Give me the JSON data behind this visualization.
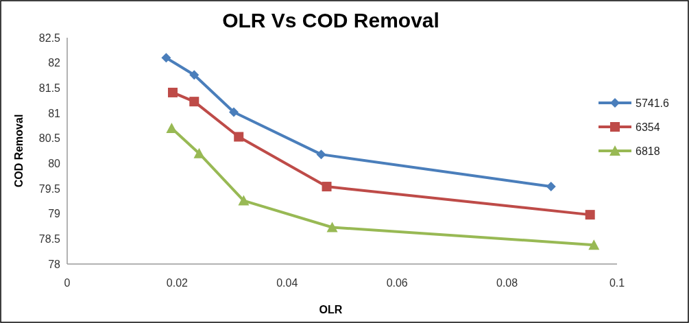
{
  "chart_data": {
    "type": "line",
    "title": "OLR  Vs COD Removal",
    "xlabel": "OLR",
    "ylabel": "COD Removal",
    "xlim": [
      0,
      0.1
    ],
    "xticks": [
      0,
      0.02,
      0.04,
      0.06,
      0.08,
      {
        "value": 0.1,
        "label": "0.1"
      }
    ],
    "ylim": [
      78,
      82.5
    ],
    "yticks": [
      78,
      78.5,
      79,
      79.5,
      80,
      80.5,
      81,
      81.5,
      82,
      82.5
    ],
    "legend": "right",
    "grid": false,
    "series": [
      {
        "name": "5741.6",
        "color": "#4a7ebb",
        "marker": "diamond",
        "x": [
          0.018,
          0.0231,
          0.0303,
          0.0462,
          0.088
        ],
        "values": [
          82.1,
          81.76,
          81.02,
          80.18,
          79.54
        ]
      },
      {
        "name": "6354",
        "color": "#be4b48",
        "marker": "square",
        "x": [
          0.0192,
          0.0231,
          0.0312,
          0.0472,
          0.0951
        ],
        "values": [
          81.41,
          81.23,
          80.53,
          79.54,
          78.98
        ]
      },
      {
        "name": "6818",
        "color": "#98b954",
        "marker": "triangle",
        "x": [
          0.019,
          0.024,
          0.0321,
          0.0482,
          0.0958
        ],
        "values": [
          80.7,
          80.2,
          79.26,
          78.73,
          78.38
        ]
      }
    ]
  }
}
